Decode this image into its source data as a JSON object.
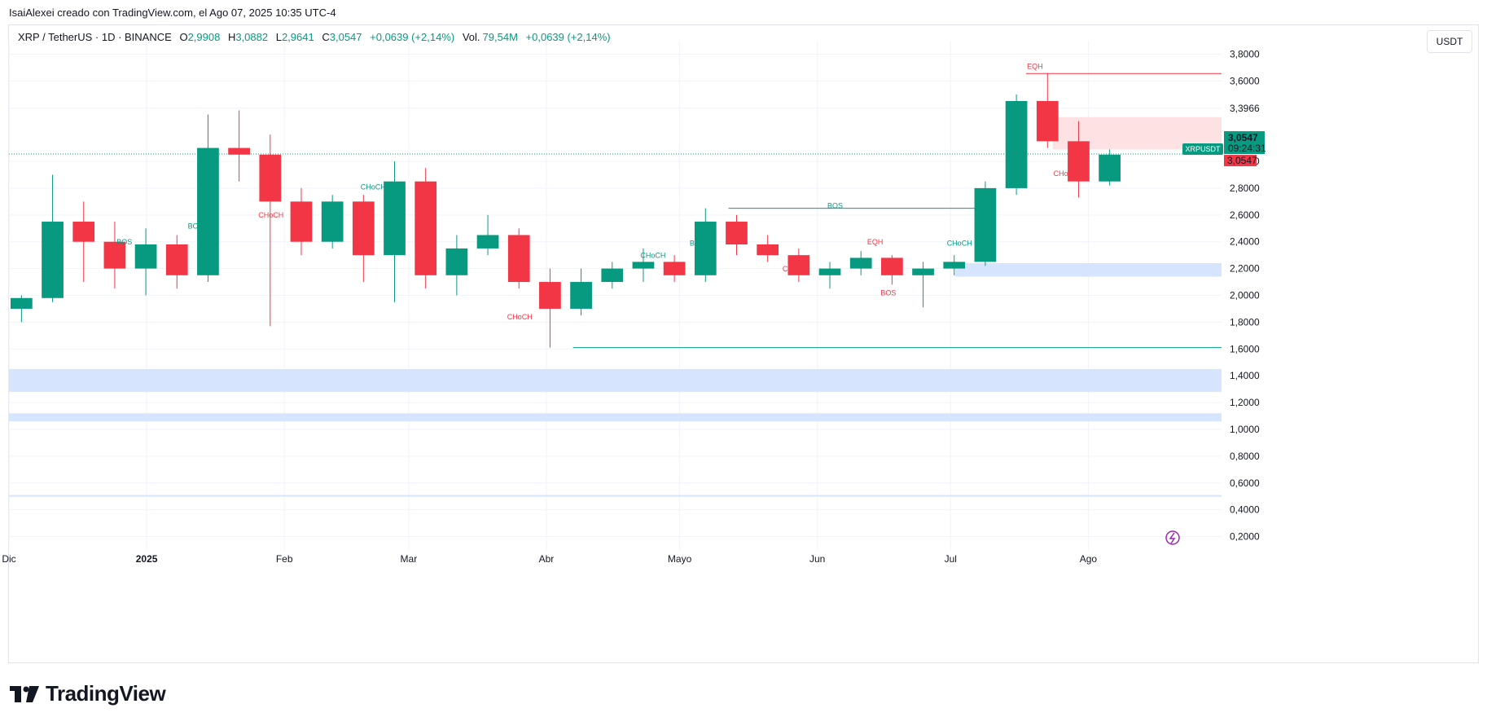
{
  "header": {
    "author_line": "IsaiAlexei creado con TradingView.com, el Ago 07, 2025 10:35 UTC-4"
  },
  "legend": {
    "symbol": "XRP / TetherUS · 1D · BINANCE",
    "o_label": "O",
    "o_value": "2,9908",
    "h_label": "H",
    "h_value": "3,0882",
    "l_label": "L",
    "l_value": "2,9641",
    "c_label": "C",
    "c_value": "3,0547",
    "change": "+0,0639 (+2,14%)",
    "vol_label": "Vol.",
    "vol_value": "79,54M",
    "vol_change": "+0,0639 (+2,14%)"
  },
  "currency_button": "USDT",
  "price_tag": {
    "symbol": "XRPUSDT",
    "price": "3,0547",
    "countdown": "09:24:31",
    "last_price": "3,0547"
  },
  "brand": {
    "name": "TradingView"
  },
  "colors": {
    "up": "#089981",
    "down": "#f23645",
    "zone_blue": "#d6e4fe",
    "zone_red": "#fde1e3",
    "grid": "#f0f3fa"
  },
  "chart_data": {
    "type": "candlestick",
    "title": "XRP / TetherUS · 1D · BINANCE",
    "ylim": [
      0.1,
      3.9
    ],
    "y_ticks": [
      3.8,
      3.6,
      3.3966,
      3.0,
      2.8,
      2.6,
      2.4,
      2.2,
      2.0,
      1.8,
      1.6,
      1.4,
      1.2,
      1.0,
      0.8,
      0.6,
      0.4,
      0.2
    ],
    "y_tick_labels": [
      "3,8000",
      "3,6000",
      "3,3966",
      "3,0000",
      "2,8000",
      "2,6000",
      "2,4000",
      "2,2000",
      "2,0000",
      "1,8000",
      "1,6000",
      "1,4000",
      "1,2000",
      "1,0000",
      "0,8000",
      "0,6000",
      "0,4000",
      "0,2000"
    ],
    "x_range": [
      "2024-12-01",
      "2025-08-31"
    ],
    "x_ticks": [
      {
        "date": "2024-12-01",
        "label": "Dic"
      },
      {
        "date": "2025-01-01",
        "label": "2025"
      },
      {
        "date": "2025-02-01",
        "label": "Feb"
      },
      {
        "date": "2025-03-01",
        "label": "Mar"
      },
      {
        "date": "2025-04-01",
        "label": "Abr"
      },
      {
        "date": "2025-05-01",
        "label": "Mayo"
      },
      {
        "date": "2025-06-01",
        "label": "Jun"
      },
      {
        "date": "2025-07-01",
        "label": "Jul"
      },
      {
        "date": "2025-08-01",
        "label": "Ago"
      }
    ],
    "last_price": 3.0547,
    "candles": [
      {
        "t": "2024-12-01",
        "o": 1.9,
        "h": 2.0,
        "l": 1.8,
        "c": 1.98
      },
      {
        "t": "2024-12-08",
        "o": 1.98,
        "h": 2.9,
        "l": 1.95,
        "c": 2.55
      },
      {
        "t": "2024-12-15",
        "o": 2.55,
        "h": 2.7,
        "l": 2.1,
        "c": 2.4
      },
      {
        "t": "2024-12-22",
        "o": 2.4,
        "h": 2.55,
        "l": 2.05,
        "c": 2.2
      },
      {
        "t": "2024-12-29",
        "o": 2.2,
        "h": 2.5,
        "l": 2.0,
        "c": 2.38
      },
      {
        "t": "2025-01-05",
        "o": 2.38,
        "h": 2.45,
        "l": 2.05,
        "c": 2.15
      },
      {
        "t": "2025-01-12",
        "o": 2.15,
        "h": 3.35,
        "l": 2.1,
        "c": 3.1
      },
      {
        "t": "2025-01-19",
        "o": 3.1,
        "h": 3.38,
        "l": 2.85,
        "c": 3.05
      },
      {
        "t": "2025-01-26",
        "o": 3.05,
        "h": 3.2,
        "l": 1.77,
        "c": 2.7
      },
      {
        "t": "2025-02-02",
        "o": 2.7,
        "h": 2.8,
        "l": 2.3,
        "c": 2.4
      },
      {
        "t": "2025-02-09",
        "o": 2.4,
        "h": 2.75,
        "l": 2.35,
        "c": 2.7
      },
      {
        "t": "2025-02-16",
        "o": 2.7,
        "h": 2.75,
        "l": 2.1,
        "c": 2.3
      },
      {
        "t": "2025-02-23",
        "o": 2.3,
        "h": 3.0,
        "l": 1.95,
        "c": 2.85
      },
      {
        "t": "2025-03-02",
        "o": 2.85,
        "h": 2.95,
        "l": 2.05,
        "c": 2.15
      },
      {
        "t": "2025-03-09",
        "o": 2.15,
        "h": 2.45,
        "l": 2.0,
        "c": 2.35
      },
      {
        "t": "2025-03-16",
        "o": 2.35,
        "h": 2.6,
        "l": 2.3,
        "c": 2.45
      },
      {
        "t": "2025-03-23",
        "o": 2.45,
        "h": 2.5,
        "l": 2.05,
        "c": 2.1
      },
      {
        "t": "2025-03-30",
        "o": 2.1,
        "h": 2.2,
        "l": 1.61,
        "c": 1.9
      },
      {
        "t": "2025-04-06",
        "o": 1.9,
        "h": 2.2,
        "l": 1.85,
        "c": 2.1
      },
      {
        "t": "2025-04-13",
        "o": 2.1,
        "h": 2.25,
        "l": 2.05,
        "c": 2.2
      },
      {
        "t": "2025-04-20",
        "o": 2.2,
        "h": 2.35,
        "l": 2.1,
        "c": 2.25
      },
      {
        "t": "2025-04-27",
        "o": 2.25,
        "h": 2.3,
        "l": 2.1,
        "c": 2.15
      },
      {
        "t": "2025-05-04",
        "o": 2.15,
        "h": 2.65,
        "l": 2.1,
        "c": 2.55
      },
      {
        "t": "2025-05-11",
        "o": 2.55,
        "h": 2.6,
        "l": 2.3,
        "c": 2.38
      },
      {
        "t": "2025-05-18",
        "o": 2.38,
        "h": 2.45,
        "l": 2.25,
        "c": 2.3
      },
      {
        "t": "2025-05-25",
        "o": 2.3,
        "h": 2.35,
        "l": 2.1,
        "c": 2.15
      },
      {
        "t": "2025-06-01",
        "o": 2.15,
        "h": 2.25,
        "l": 2.05,
        "c": 2.2
      },
      {
        "t": "2025-06-08",
        "o": 2.2,
        "h": 2.33,
        "l": 2.15,
        "c": 2.28
      },
      {
        "t": "2025-06-15",
        "o": 2.28,
        "h": 2.3,
        "l": 2.08,
        "c": 2.15
      },
      {
        "t": "2025-06-22",
        "o": 2.15,
        "h": 2.25,
        "l": 1.91,
        "c": 2.2
      },
      {
        "t": "2025-06-29",
        "o": 2.2,
        "h": 2.3,
        "l": 2.15,
        "c": 2.25
      },
      {
        "t": "2025-07-06",
        "o": 2.25,
        "h": 2.85,
        "l": 2.22,
        "c": 2.8
      },
      {
        "t": "2025-07-13",
        "o": 2.8,
        "h": 3.5,
        "l": 2.75,
        "c": 3.45
      },
      {
        "t": "2025-07-20",
        "o": 3.45,
        "h": 3.66,
        "l": 3.1,
        "c": 3.15
      },
      {
        "t": "2025-07-27",
        "o": 3.15,
        "h": 3.3,
        "l": 2.73,
        "c": 2.85
      },
      {
        "t": "2025-08-03",
        "o": 2.85,
        "h": 3.09,
        "l": 2.82,
        "c": 3.05
      }
    ],
    "horizontal_lines": [
      {
        "name": "EQH",
        "price": 3.655,
        "from": "2025-07-18",
        "to": "2025-08-31",
        "color": "#f23645"
      },
      {
        "name": "BOS",
        "price": 2.65,
        "from": "2025-05-12",
        "to": "2025-07-08",
        "color": "#089981"
      },
      {
        "name": "",
        "price": 1.61,
        "from": "2025-04-07",
        "to": "2025-08-31",
        "color": "#089981"
      }
    ],
    "structure_labels": [
      {
        "text": "BOS",
        "price": 2.38,
        "date": "2024-12-27",
        "color": "#089981"
      },
      {
        "text": "BOS",
        "price": 2.5,
        "date": "2025-01-12",
        "color": "#089981"
      },
      {
        "text": "CHoCH",
        "price": 2.58,
        "date": "2025-01-29",
        "color": "#f23645"
      },
      {
        "text": "CHoCH",
        "price": 2.79,
        "date": "2025-02-21",
        "color": "#089981"
      },
      {
        "text": "BOS",
        "price": 2.42,
        "date": "2025-02-19",
        "color": "#f23645"
      },
      {
        "text": "CHoCH",
        "price": 1.82,
        "date": "2025-03-26",
        "color": "#f23645"
      },
      {
        "text": "CHoCH",
        "price": 2.28,
        "date": "2025-04-25",
        "color": "#089981"
      },
      {
        "text": "BOS",
        "price": 2.37,
        "date": "2025-05-05",
        "color": "#089981"
      },
      {
        "text": "BOS",
        "price": 2.65,
        "date": "2025-06-05",
        "color": "#089981"
      },
      {
        "text": "CHoCH",
        "price": 2.18,
        "date": "2025-05-27",
        "color": "#f23645"
      },
      {
        "text": "EQH",
        "price": 2.38,
        "date": "2025-06-14",
        "color": "#f23645"
      },
      {
        "text": "BOS",
        "price": 2.0,
        "date": "2025-06-17",
        "color": "#f23645"
      },
      {
        "text": "CHoCH",
        "price": 2.37,
        "date": "2025-07-03",
        "color": "#089981"
      },
      {
        "text": "EQH",
        "price": 3.69,
        "date": "2025-07-20",
        "color": "#f23645"
      },
      {
        "text": "CHoCH",
        "price": 2.89,
        "date": "2025-07-27",
        "color": "#f23645"
      }
    ],
    "zones": [
      {
        "color": "blue",
        "from": "2025-07-02",
        "to": "2025-08-31",
        "top": 2.24,
        "bottom": 2.14
      },
      {
        "color": "blue",
        "from": "2024-12-01",
        "to": "2025-08-31",
        "top": 1.45,
        "bottom": 1.28
      },
      {
        "color": "blue",
        "from": "2024-12-01",
        "to": "2025-08-31",
        "top": 1.12,
        "bottom": 1.06
      },
      {
        "color": "blue",
        "from": "2024-12-01",
        "to": "2025-08-31",
        "top": 0.51,
        "bottom": 0.5
      },
      {
        "color": "red",
        "from": "2025-07-24",
        "to": "2025-08-31",
        "top": 3.33,
        "bottom": 3.09
      }
    ]
  }
}
